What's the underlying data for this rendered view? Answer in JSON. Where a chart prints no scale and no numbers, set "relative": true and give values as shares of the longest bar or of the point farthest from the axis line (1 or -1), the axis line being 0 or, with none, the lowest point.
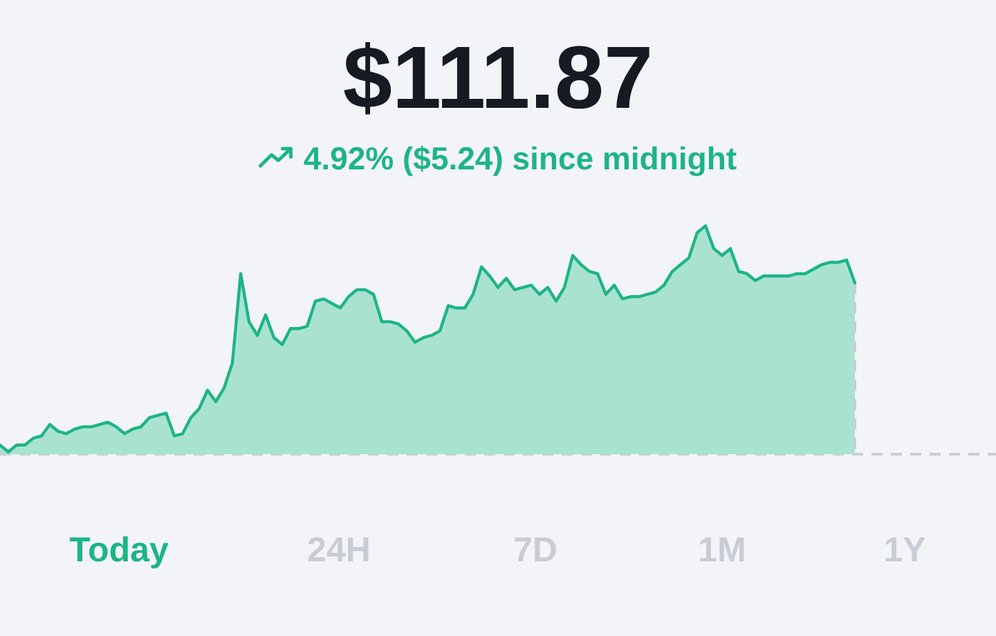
{
  "chart_data": {
    "type": "area",
    "title": "$111.87",
    "subtitle": "4.92% ($5.24) since midnight",
    "relative": true,
    "color": "#1db584",
    "categories": [
      null,
      null,
      null,
      null,
      null,
      null,
      null,
      null,
      null,
      null,
      null,
      null,
      null,
      null,
      null,
      null,
      null,
      null,
      null,
      null,
      null,
      null,
      null,
      null,
      null,
      null,
      null,
      null,
      null,
      null,
      null,
      null,
      null,
      null,
      null,
      null,
      null,
      null,
      null,
      null,
      null,
      null,
      null,
      null,
      null,
      null,
      null,
      null,
      null,
      null,
      null,
      null,
      null,
      null,
      null,
      null,
      null,
      null,
      null,
      null,
      null,
      null,
      null,
      null,
      null,
      null,
      null,
      null,
      null,
      null,
      null,
      null,
      null,
      null,
      null,
      null,
      null,
      null,
      null,
      null,
      null,
      null,
      null,
      null,
      null,
      null,
      null,
      null,
      null,
      null,
      null,
      null,
      null,
      null,
      null,
      null,
      null,
      null,
      null,
      null,
      null,
      null,
      null,
      null,
      null,
      null,
      null,
      null,
      null,
      null,
      null,
      null,
      null,
      null,
      null,
      null,
      null,
      null,
      null,
      null,
      null
    ],
    "values": [
      0.04,
      0.01,
      0.04,
      0.04,
      0.07,
      0.08,
      0.13,
      0.1,
      0.09,
      0.11,
      0.12,
      0.12,
      0.13,
      0.14,
      0.12,
      0.09,
      0.11,
      0.12,
      0.16,
      0.17,
      0.18,
      0.08,
      0.09,
      0.16,
      0.2,
      0.28,
      0.23,
      0.29,
      0.4,
      0.79,
      0.58,
      0.52,
      0.61,
      0.51,
      0.48,
      0.55,
      0.55,
      0.56,
      0.67,
      0.68,
      0.66,
      0.64,
      0.69,
      0.72,
      0.72,
      0.7,
      0.58,
      0.58,
      0.57,
      0.54,
      0.49,
      0.51,
      0.52,
      0.54,
      0.65,
      0.64,
      0.64,
      0.7,
      0.82,
      0.78,
      0.73,
      0.77,
      0.72,
      0.73,
      0.74,
      0.7,
      0.73,
      0.67,
      0.73,
      0.87,
      0.83,
      0.8,
      0.79,
      0.7,
      0.74,
      0.68,
      0.69,
      0.69,
      0.7,
      0.71,
      0.74,
      0.8,
      0.83,
      0.86,
      0.97,
      1.0,
      0.9,
      0.87,
      0.9,
      0.8,
      0.79,
      0.76,
      0.78,
      0.78,
      0.78,
      0.78,
      0.79,
      0.79,
      0.81,
      0.83,
      0.84,
      0.84,
      0.85,
      0.75,
      null,
      null,
      null,
      null,
      null,
      null,
      null,
      null,
      null,
      null,
      null,
      null,
      null,
      null,
      null,
      null,
      null
    ],
    "annotations": [
      "Today",
      "24H",
      "7D",
      "1M",
      "1Y"
    ]
  }
}
